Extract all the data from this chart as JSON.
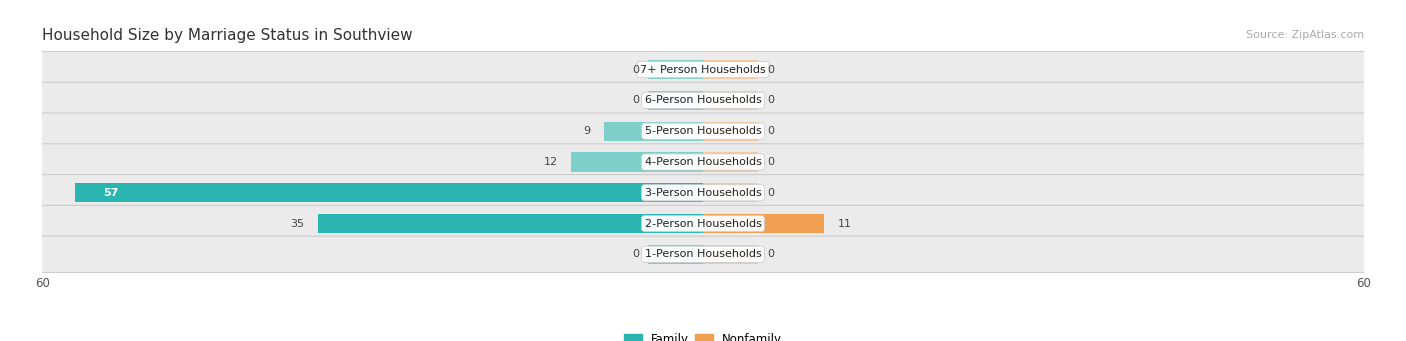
{
  "title": "Household Size by Marriage Status in Southview",
  "source": "Source: ZipAtlas.com",
  "categories": [
    "7+ Person Households",
    "6-Person Households",
    "5-Person Households",
    "4-Person Households",
    "3-Person Households",
    "2-Person Households",
    "1-Person Households"
  ],
  "family_values": [
    0,
    0,
    9,
    12,
    57,
    35,
    0
  ],
  "nonfamily_values": [
    0,
    0,
    0,
    0,
    0,
    11,
    0
  ],
  "family_color_light": "#7ececa",
  "family_color_dark": "#2ab5b0",
  "nonfamily_color_light": "#f5c9a0",
  "nonfamily_color_dark": "#f0a050",
  "axis_limit": 60,
  "bg_color": "#f5f5f5",
  "row_bg_color": "#e8e8e8",
  "row_bg_color2": "#eeeeee",
  "stub_size": 5,
  "bar_height": 0.62,
  "label_fontsize": 8,
  "title_fontsize": 11,
  "source_fontsize": 8,
  "value_fontsize": 8
}
